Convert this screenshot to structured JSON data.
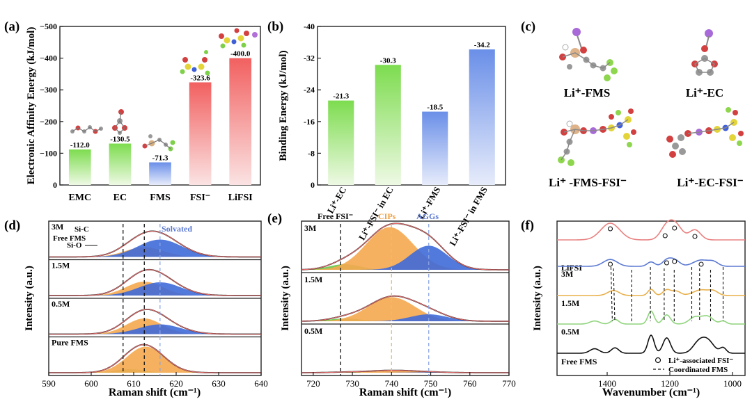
{
  "colors": {
    "green": "#7ddc4f",
    "greenLight": "#e6f7d6",
    "blue": "#6a8fe8",
    "blueLight": "#e3e9fb",
    "red": "#f26464",
    "redLight": "#fbe0e0",
    "orange": "#f5a84f",
    "ramanBlue": "#3f6ad8",
    "ramanGreen": "#69c84a",
    "fitRed": "#e46a6a",
    "navy": "#4a5db8",
    "lifsi": "#e98080",
    "m3": "#5b79d2",
    "m15": "#e8b04a",
    "m05": "#8fd47c",
    "free": "#111111"
  },
  "panels": {
    "a": {
      "label": "(a)",
      "chart_data": {
        "type": "bar",
        "categories": [
          "EMC",
          "EC",
          "FMS",
          "FSI⁻",
          "LiFSI"
        ],
        "values": [
          -112.0,
          -130.5,
          -71.3,
          -323.6,
          -400.0
        ],
        "value_labels": [
          "-112.0",
          "-130.5",
          "-71.3",
          "-323.6",
          "-400.0"
        ],
        "series_colors": [
          "green",
          "green",
          "blue",
          "red",
          "red"
        ],
        "ylabel": "Electronic Affinity Energy (kJ/mol)",
        "ylim": [
          0,
          -500
        ],
        "yticks": [
          "0",
          "−100",
          "−200",
          "−300",
          "−400",
          "−500"
        ],
        "ytick_values": [
          0,
          -100,
          -200,
          -300,
          -400,
          -500
        ]
      }
    },
    "b": {
      "label": "(b)",
      "chart_data": {
        "type": "bar",
        "categories": [
          "Li⁺-EC",
          "Li⁺-FSI⁻ in EC",
          "Li⁺-FMS",
          "Li⁺-FSI⁻ in FMS"
        ],
        "values": [
          -21.3,
          -30.3,
          -18.5,
          -34.2
        ],
        "value_labels": [
          "-21.3",
          "-30.3",
          "-18.5",
          "-34.2"
        ],
        "series_colors": [
          "green",
          "green",
          "blue",
          "blue"
        ],
        "ylabel": "Binding Energy (kJ/mol)",
        "ylim": [
          0,
          -40
        ],
        "yticks": [
          "0",
          "-8",
          "-16",
          "-24",
          "-32",
          "-40"
        ],
        "ytick_values": [
          0,
          -8,
          -16,
          -24,
          -32,
          -40
        ]
      }
    },
    "c": {
      "label": "(c)",
      "structures": [
        "Li⁺-FMS",
        "Li⁺-EC",
        "Li⁺ -FMS-FSI⁻",
        "Li⁺-EC-FSI⁻"
      ]
    },
    "d": {
      "label": "(d)",
      "chart_data": {
        "type": "area",
        "xlabel": "Raman shift (cm⁻¹)",
        "ylabel": "Intensity (a.u.)",
        "xlim": [
          590,
          640
        ],
        "xticks": [
          590,
          600,
          610,
          620,
          630,
          640
        ],
        "reference_lines": [
          607.5,
          612.5,
          616.2
        ],
        "annotations": [
          "Si-C",
          "Free FMS",
          "Si-O",
          "Solvated"
        ],
        "series": [
          {
            "name": "3M",
            "components": [
              {
                "center": 609,
                "height": 0.05,
                "width": 3.5,
                "color": "ramanGreen"
              },
              {
                "center": 612.5,
                "height": 0.28,
                "width": 4.5,
                "color": "orange"
              },
              {
                "center": 616.2,
                "height": 0.5,
                "width": 5.2,
                "color": "ramanBlue"
              }
            ],
            "peak": 0.82
          },
          {
            "name": "1.5M",
            "components": [
              {
                "center": 609,
                "height": 0.06,
                "width": 3.5,
                "color": "ramanGreen"
              },
              {
                "center": 612.5,
                "height": 0.4,
                "width": 4.3,
                "color": "orange"
              },
              {
                "center": 616.2,
                "height": 0.38,
                "width": 5.0,
                "color": "ramanBlue"
              }
            ],
            "peak": 0.78
          },
          {
            "name": "0.5M",
            "components": [
              {
                "center": 609,
                "height": 0.07,
                "width": 3.5,
                "color": "ramanGreen"
              },
              {
                "center": 612.5,
                "height": 0.45,
                "width": 4.2,
                "color": "orange"
              },
              {
                "center": 616.2,
                "height": 0.28,
                "width": 5.0,
                "color": "ramanBlue"
              }
            ],
            "peak": 0.72
          },
          {
            "name": "Pure FMS",
            "components": [
              {
                "center": 609,
                "height": 0.1,
                "width": 3.5,
                "color": "ramanGreen"
              },
              {
                "center": 612.8,
                "height": 0.75,
                "width": 4.4,
                "color": "orange"
              }
            ],
            "peak": 0.82
          }
        ]
      }
    },
    "e": {
      "label": "(e)",
      "chart_data": {
        "type": "area",
        "xlabel": "Raman shift (cm⁻¹)",
        "ylabel": "Intensity (a.u.)",
        "xlim": [
          717,
          770
        ],
        "xticks": [
          720,
          730,
          740,
          750,
          760,
          770
        ],
        "reference_lines": [
          727.0,
          740.0,
          749.5
        ],
        "reference_labels": [
          "Free FSI⁻",
          "CIPs",
          "AGGs"
        ],
        "series": [
          {
            "name": "3M",
            "components": [
              {
                "center": 728,
                "height": 0.12,
                "width": 4.0,
                "color": "ramanGreen"
              },
              {
                "center": 739.5,
                "height": 0.92,
                "width": 6.0,
                "color": "orange"
              },
              {
                "center": 749.5,
                "height": 0.52,
                "width": 4.8,
                "color": "ramanBlue"
              }
            ]
          },
          {
            "name": "1.5M",
            "components": [
              {
                "center": 728,
                "height": 0.06,
                "width": 4.0,
                "color": "ramanGreen"
              },
              {
                "center": 740,
                "height": 0.52,
                "width": 6.0,
                "color": "orange"
              },
              {
                "center": 749.5,
                "height": 0.15,
                "width": 4.8,
                "color": "ramanBlue"
              }
            ]
          },
          {
            "name": "0.5M",
            "components": [
              {
                "center": 728,
                "height": 0.01,
                "width": 4.0,
                "color": "ramanGreen"
              },
              {
                "center": 740,
                "height": 0.05,
                "width": 6.0,
                "color": "orange"
              },
              {
                "center": 749.5,
                "height": 0.01,
                "width": 4.8,
                "color": "ramanBlue"
              }
            ]
          }
        ]
      }
    },
    "f": {
      "label": "(f)",
      "chart_data": {
        "type": "line",
        "xlabel": "Wavenumber (cm⁻¹)",
        "ylabel": "Intensity (a.u.)",
        "xlim": [
          1560,
          960
        ],
        "xticks": [
          1400,
          1200,
          1000
        ],
        "series": [
          {
            "name": "LiFSI",
            "color": "lifsi",
            "peaks": [
              [
                1390,
                1.0,
                30
              ],
              [
                1215,
                0.55,
                18
              ],
              [
                1185,
                1.0,
                22
              ],
              [
                1120,
                0.6,
                18
              ]
            ]
          },
          {
            "name": "3M",
            "color": "m3",
            "peaks": [
              [
                1390,
                0.55,
                22
              ],
              [
                1260,
                0.35,
                12
              ],
              [
                1210,
                0.45,
                14
              ],
              [
                1185,
                0.5,
                16
              ],
              [
                1100,
                0.5,
                25
              ],
              [
                1060,
                0.3,
                15
              ]
            ]
          },
          {
            "name": "1.5M",
            "color": "m15",
            "peaks": [
              [
                1380,
                0.4,
                18
              ],
              [
                1260,
                0.5,
                10
              ],
              [
                1210,
                0.45,
                12
              ],
              [
                1180,
                0.35,
                14
              ],
              [
                1100,
                0.45,
                25
              ],
              [
                1060,
                0.3,
                15
              ]
            ]
          },
          {
            "name": "0.5M",
            "color": "m05",
            "peaks": [
              [
                1440,
                0.2,
                15
              ],
              [
                1375,
                0.3,
                12
              ],
              [
                1260,
                0.85,
                10
              ],
              [
                1210,
                0.6,
                12
              ],
              [
                1120,
                0.45,
                18
              ],
              [
                1080,
                0.5,
                18
              ],
              [
                1030,
                0.2,
                10
              ]
            ]
          },
          {
            "name": "Free FMS",
            "color": "free",
            "peaks": [
              [
                1440,
                0.25,
                15
              ],
              [
                1375,
                0.3,
                12
              ],
              [
                1260,
                1.0,
                10
              ],
              [
                1210,
                0.85,
                12
              ],
              [
                1110,
                0.5,
                18
              ],
              [
                1080,
                0.7,
                20
              ],
              [
                1030,
                0.3,
                10
              ]
            ]
          }
        ],
        "dashed_lines": [
          1388,
          1380,
          1322,
          1262,
          1218,
          1186,
          1130,
          1105,
          1070,
          1030
        ],
        "legend": [
          "Li⁺-associated FSI⁻",
          "Coordinated FMS"
        ]
      }
    }
  }
}
